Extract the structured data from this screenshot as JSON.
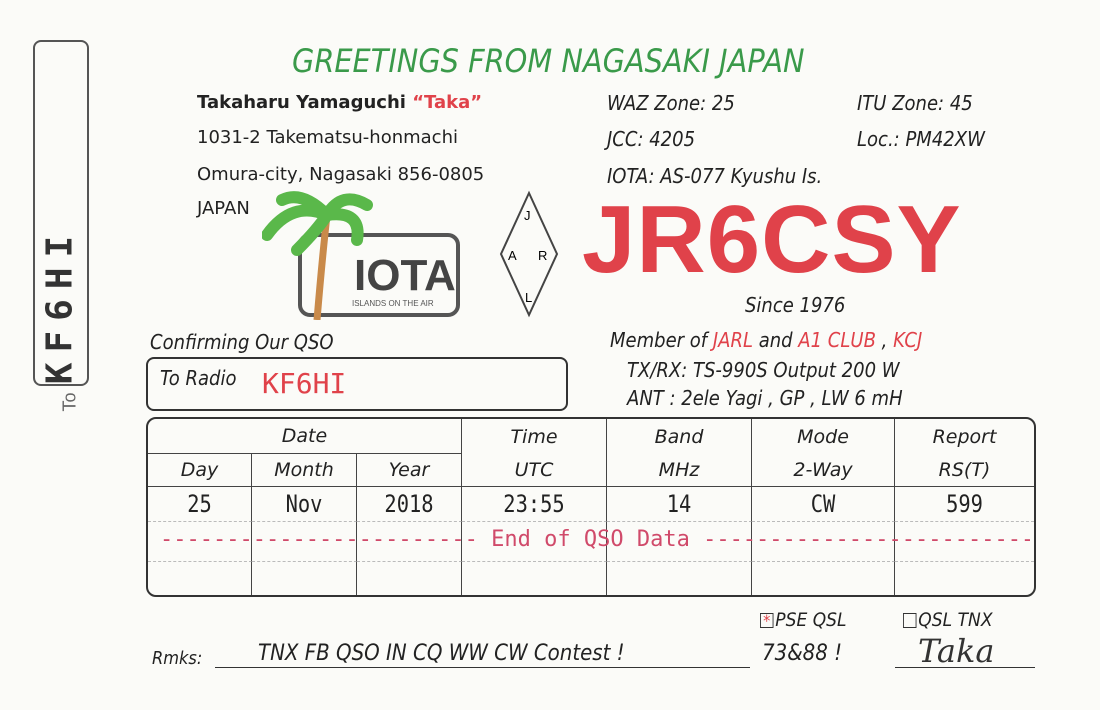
{
  "to_label": "To",
  "to_call": "KF6HI",
  "title": "GREETINGS FROM NAGASAKI JAPAN",
  "operator": {
    "name": "Takaharu Yamaguchi",
    "nick": "“Taka”",
    "address1": "1031-2 Takematsu-honmachi",
    "address2": "Omura-city, Nagasaki 856-0805",
    "country": "JAPAN"
  },
  "info": {
    "waz": "WAZ Zone: 25",
    "itu": "ITU Zone: 45",
    "jcc": "JCC: 4205",
    "loc": "Loc.: PM42XW",
    "iota": "IOTA: AS-077 Kyushu Is."
  },
  "callsign": "JR6CSY",
  "since": "Since 1976",
  "member": {
    "prefix": "Member of ",
    "jarl": "JARL",
    "and": " and ",
    "a1": "A1 CLUB",
    "sep": " , ",
    "kcj": "KCJ"
  },
  "rig": "TX/RX: TS-990S  Output 200 W",
  "ant": "ANT : 2ele Yagi , GP , LW  6 mH",
  "confirming": "Confirming Our QSO",
  "to_radio": "To Radio",
  "logos": {
    "iota": "IOTA",
    "iota_sub": "ISLANDS ON THE AIR",
    "jarl": [
      "J",
      "A",
      "R",
      "L"
    ]
  },
  "table": {
    "date": "Date",
    "time": "Time",
    "band": "Band",
    "mode": "Mode",
    "report": "Report",
    "day": "Day",
    "month": "Month",
    "year": "Year",
    "utc": "UTC",
    "mhz": "MHz",
    "way": "2-Way",
    "rst": "RS(T)",
    "row": [
      "25",
      "Nov",
      "2018",
      "23:55",
      "14",
      "CW",
      "599"
    ]
  },
  "end_qso": "End of QSO Data",
  "pse_qsl": "PSE QSL",
  "qsl_tnx": "QSL TNX",
  "pse_mark": "*",
  "rmks_label": "Rmks:",
  "rmks": "TNX FB QSO IN CQ WW CW Contest !",
  "closing": "73&88 !",
  "signature": "Taka",
  "colors": {
    "green": "#3a9a4a",
    "red": "#e0424a"
  }
}
